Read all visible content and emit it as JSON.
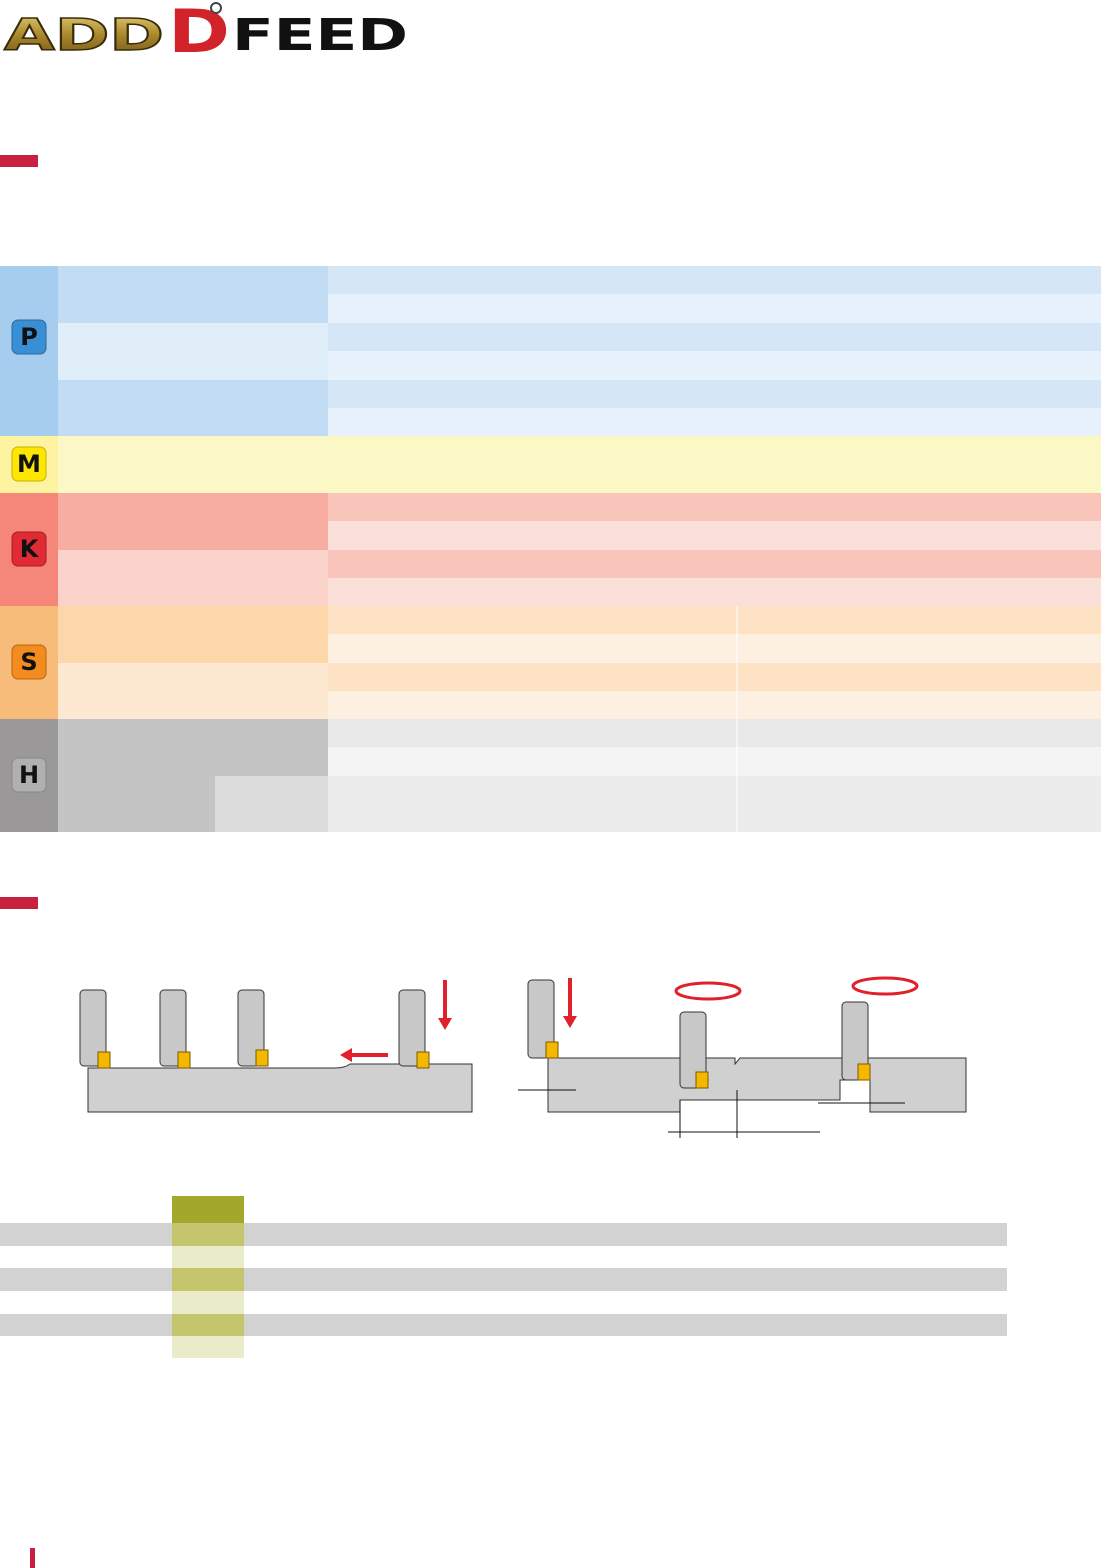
{
  "logo": {
    "parts": [
      "ADD",
      "D",
      "FEED"
    ]
  },
  "material_groups": [
    "P",
    "M",
    "K",
    "S",
    "H"
  ]
}
